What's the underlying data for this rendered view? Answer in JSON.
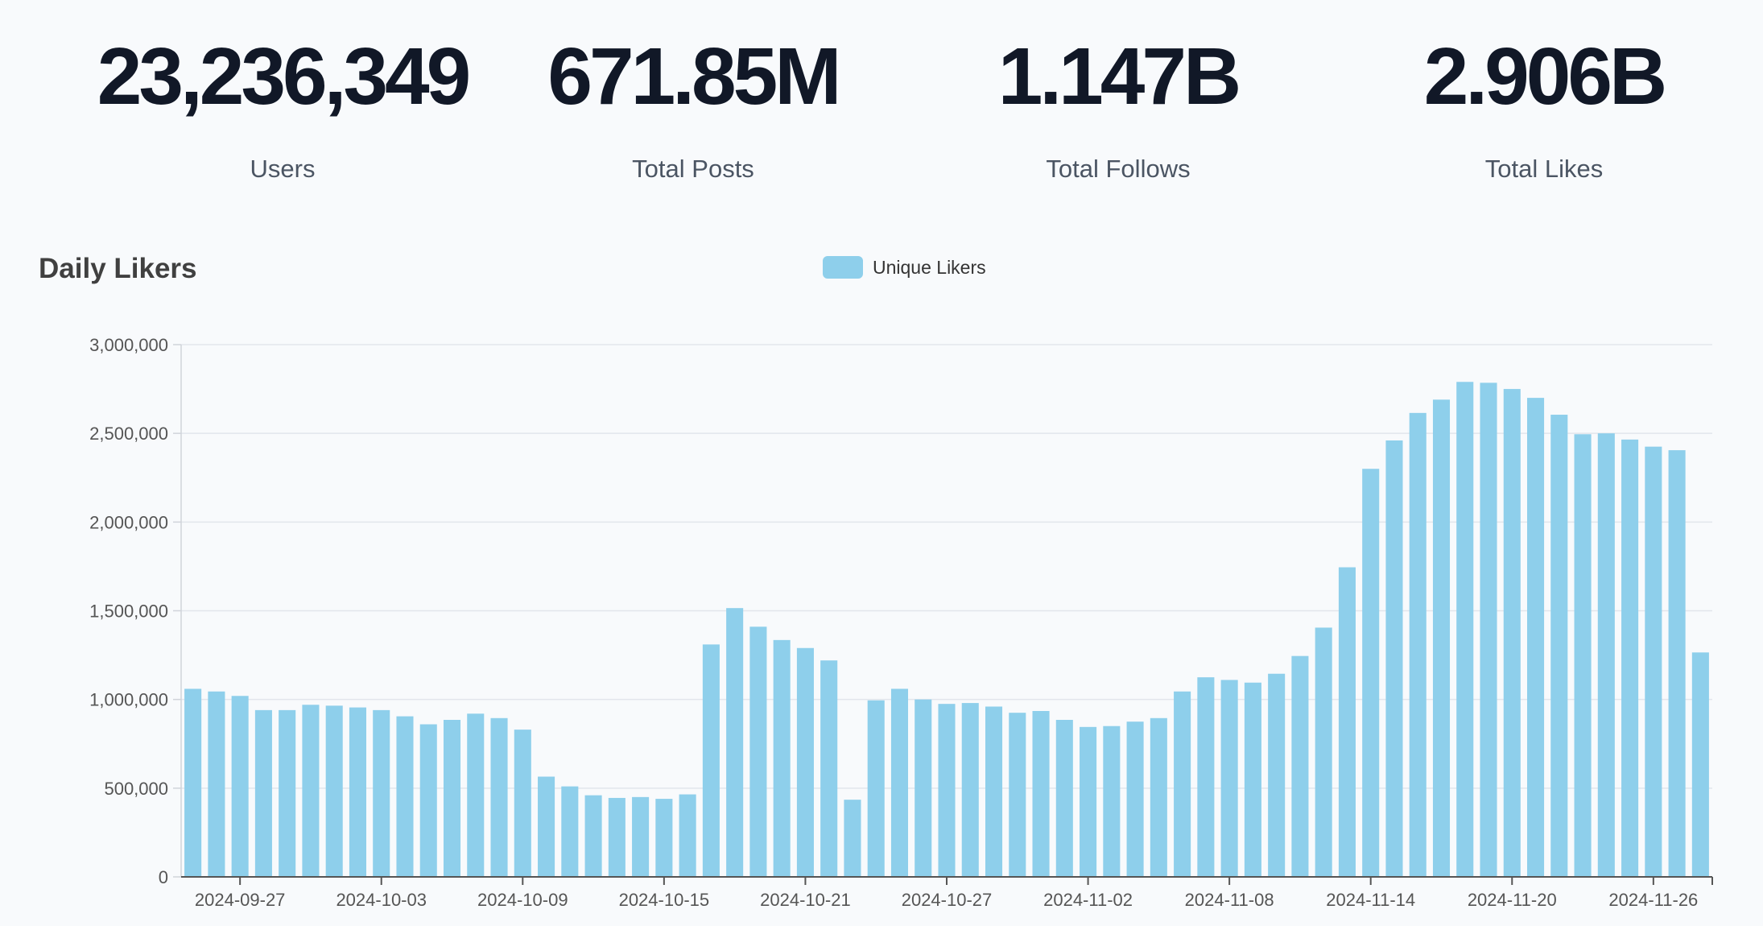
{
  "stats": {
    "users": {
      "value": "23,236,349",
      "label": "Users"
    },
    "posts": {
      "value": "671.85M",
      "label": "Total Posts"
    },
    "follows": {
      "value": "1.147B",
      "label": "Total Follows"
    },
    "likes": {
      "value": "2.906B",
      "label": "Total Likes"
    }
  },
  "chart_data": {
    "type": "bar",
    "title": "Daily Likers",
    "legend": {
      "label": "Unique Likers",
      "placement": "top-center"
    },
    "bar_color": "#8ecfeb",
    "ylim": [
      0,
      3000000
    ],
    "yticks": [
      0,
      500000,
      1000000,
      1500000,
      2000000,
      2500000,
      3000000
    ],
    "ytick_labels": [
      "0",
      "500,000",
      "1,000,000",
      "1,500,000",
      "2,000,000",
      "2,500,000",
      "3,000,000"
    ],
    "categories": [
      "2024-09-25",
      "2024-09-26",
      "2024-09-27",
      "2024-09-28",
      "2024-09-29",
      "2024-09-30",
      "2024-10-01",
      "2024-10-02",
      "2024-10-03",
      "2024-10-04",
      "2024-10-05",
      "2024-10-06",
      "2024-10-07",
      "2024-10-08",
      "2024-10-09",
      "2024-10-10",
      "2024-10-11",
      "2024-10-12",
      "2024-10-13",
      "2024-10-14",
      "2024-10-15",
      "2024-10-16",
      "2024-10-17",
      "2024-10-18",
      "2024-10-19",
      "2024-10-20",
      "2024-10-21",
      "2024-10-22",
      "2024-10-23",
      "2024-10-24",
      "2024-10-25",
      "2024-10-26",
      "2024-10-27",
      "2024-10-28",
      "2024-10-29",
      "2024-10-30",
      "2024-10-31",
      "2024-11-01",
      "2024-11-02",
      "2024-11-03",
      "2024-11-04",
      "2024-11-05",
      "2024-11-06",
      "2024-11-07",
      "2024-11-08",
      "2024-11-09",
      "2024-11-10",
      "2024-11-11",
      "2024-11-12",
      "2024-11-13",
      "2024-11-14",
      "2024-11-15",
      "2024-11-16",
      "2024-11-17",
      "2024-11-18",
      "2024-11-19",
      "2024-11-20",
      "2024-11-21",
      "2024-11-22",
      "2024-11-23",
      "2024-11-24",
      "2024-11-25",
      "2024-11-26",
      "2024-11-27",
      "2024-11-28"
    ],
    "xtick_labels": [
      "2024-09-27",
      "2024-10-03",
      "2024-10-09",
      "2024-10-15",
      "2024-10-21",
      "2024-10-27",
      "2024-11-02",
      "2024-11-08",
      "2024-11-14",
      "2024-11-20",
      "2024-11-26"
    ],
    "series": [
      {
        "name": "Unique Likers",
        "values": [
          1060000,
          1045000,
          1020000,
          940000,
          940000,
          970000,
          965000,
          955000,
          940000,
          905000,
          860000,
          885000,
          920000,
          895000,
          830000,
          565000,
          510000,
          460000,
          445000,
          450000,
          440000,
          465000,
          1310000,
          1515000,
          1410000,
          1335000,
          1290000,
          1220000,
          435000,
          995000,
          1060000,
          1000000,
          975000,
          980000,
          960000,
          925000,
          935000,
          885000,
          845000,
          850000,
          875000,
          895000,
          1045000,
          1125000,
          1110000,
          1095000,
          1145000,
          1245000,
          1405000,
          1745000,
          2300000,
          2460000,
          2615000,
          2690000,
          2790000,
          2785000,
          2750000,
          2700000,
          2605000,
          2495000,
          2500000,
          2465000,
          2425000,
          2405000,
          1265000
        ]
      }
    ]
  }
}
